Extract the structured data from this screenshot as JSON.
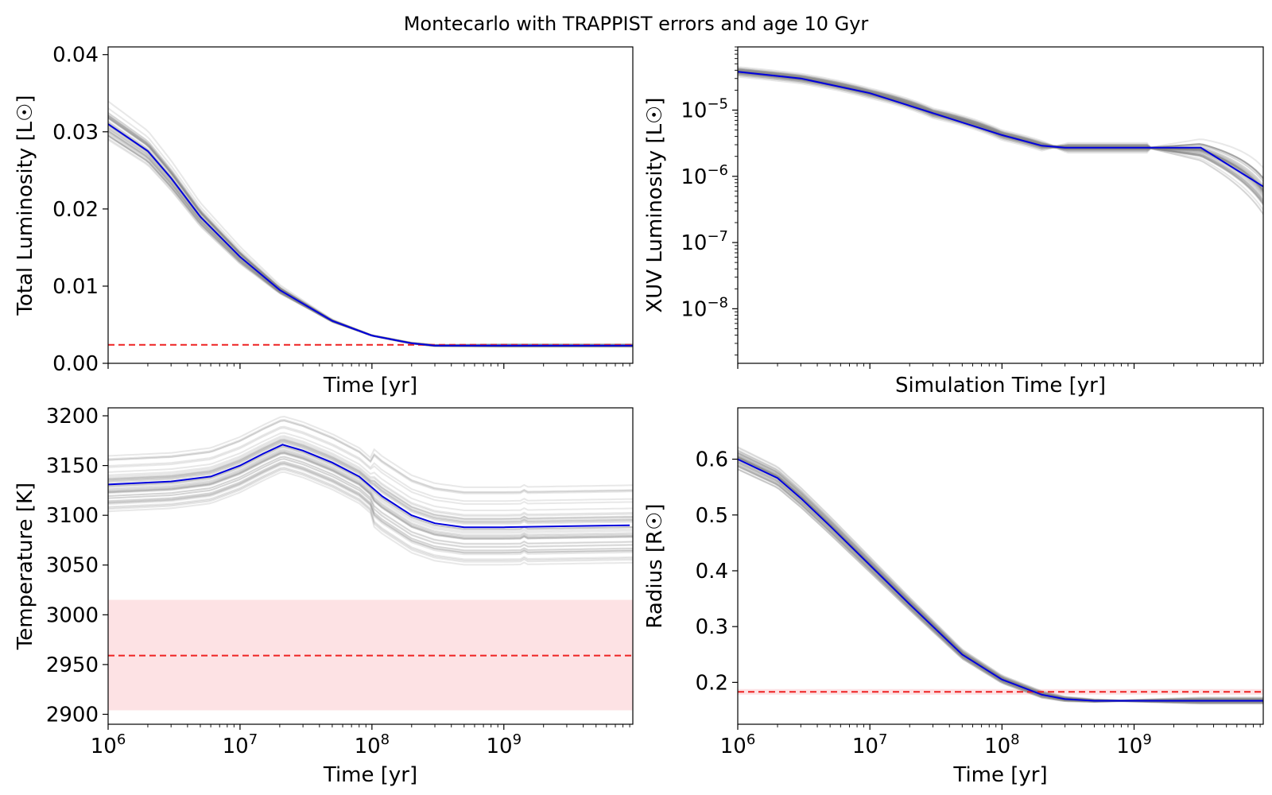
{
  "title": "Montecarlo with TRAPPIST errors and age 10 Gyr",
  "colors": {
    "model": "#0000dd",
    "samples": "#808080",
    "reference": "#ee2222",
    "band": "#fde2e4"
  },
  "chart_data": [
    {
      "type": "line",
      "id": "total-luminosity",
      "xlabel": "Time [yr]",
      "ylabel": "Total Luminosity [L☉]",
      "xscale": "log",
      "yscale": "linear",
      "xlim": [
        1000000,
        9500000000
      ],
      "ylim": [
        0.0,
        0.041
      ],
      "xticks": [],
      "yticks": [
        {
          "value": 0.0,
          "label": "0.00"
        },
        {
          "value": 0.01,
          "label": "0.01"
        },
        {
          "value": 0.02,
          "label": "0.02"
        },
        {
          "value": 0.03,
          "label": "0.03"
        },
        {
          "value": 0.04,
          "label": "0.04"
        }
      ],
      "reference_line": 0.0024,
      "model": {
        "x": [
          1000000,
          2000000,
          3000000,
          5000000,
          10000000,
          20000000,
          50000000,
          100000000,
          200000000,
          300000000,
          500000000,
          1000000000,
          9500000000
        ],
        "y": [
          0.031,
          0.0275,
          0.024,
          0.019,
          0.0138,
          0.0095,
          0.0055,
          0.0036,
          0.0026,
          0.0023,
          0.0023,
          0.0023,
          0.0023
        ]
      },
      "samples": {
        "count": 42,
        "spread": 0.1,
        "converge": [
          7.0,
          9.0
        ],
        "spike_every": 0
      }
    },
    {
      "type": "line",
      "id": "xuv-luminosity",
      "xlabel": "Simulation Time [yr]",
      "ylabel": "XUV Luminosity [L☉]",
      "xscale": "log",
      "yscale": "log",
      "xlim": [
        1000000,
        9500000000
      ],
      "ylim": [
        1.5e-09,
        9e-05
      ],
      "xticks": [],
      "yticks": [
        {
          "value": 1e-08,
          "label": "10",
          "exp": "−8"
        },
        {
          "value": 1e-07,
          "label": "10",
          "exp": "−7"
        },
        {
          "value": 1e-06,
          "label": "10",
          "exp": "−6"
        },
        {
          "value": 1e-05,
          "label": "10",
          "exp": "−5"
        }
      ],
      "model": {
        "x": [
          1000000,
          3000000,
          10000000,
          30000000,
          100000000,
          200000000,
          300000000,
          1000000000,
          3200000000,
          9500000000
        ],
        "y": [
          3.8e-05,
          3e-05,
          1.8e-05,
          9e-06,
          4.2e-06,
          2.9e-06,
          2.7e-06,
          2.7e-06,
          2.7e-06,
          7e-07
        ]
      },
      "samples": {
        "count": 48,
        "spread": 0.05,
        "converge": [
          8.3,
          8.5
        ],
        "spike_every": 0
      }
    },
    {
      "type": "line",
      "id": "temperature",
      "xlabel": "Time [yr]",
      "ylabel": "Temperature [K]",
      "xscale": "log",
      "yscale": "linear",
      "xlim": [
        1000000,
        9500000000
      ],
      "ylim": [
        2890,
        3208
      ],
      "xticks": [
        {
          "value": 1000000,
          "label": "10",
          "exp": "6"
        },
        {
          "value": 10000000,
          "label": "10",
          "exp": "7"
        },
        {
          "value": 100000000,
          "label": "10",
          "exp": "8"
        },
        {
          "value": 1000000000,
          "label": "10",
          "exp": "9"
        }
      ],
      "yticks": [
        {
          "value": 2900,
          "label": "2900"
        },
        {
          "value": 2950,
          "label": "2950"
        },
        {
          "value": 3000,
          "label": "3000"
        },
        {
          "value": 3050,
          "label": "3050"
        },
        {
          "value": 3100,
          "label": "3100"
        },
        {
          "value": 3150,
          "label": "3150"
        },
        {
          "value": 3200,
          "label": "3200"
        }
      ],
      "reference_line": 2959,
      "reference_band": [
        2904,
        3015
      ],
      "model": {
        "x": [
          1000000,
          3000000,
          6000000,
          10000000,
          15000000,
          21000000,
          30000000,
          50000000,
          80000000,
          120000000,
          200000000,
          300000000,
          500000000,
          1000000000,
          3000000000,
          9000000000
        ],
        "y": [
          3131,
          3134,
          3139,
          3150,
          3162,
          3171,
          3165,
          3153,
          3139,
          3119,
          3100,
          3092,
          3088,
          3088,
          3089,
          3090
        ]
      },
      "samples": {
        "count": 44,
        "spread": 0.55,
        "converge": [
          0,
          0
        ],
        "spike_every": 6
      }
    },
    {
      "type": "line",
      "id": "radius",
      "xlabel": "Time [yr]",
      "ylabel": "Radius [R☉]",
      "xscale": "log",
      "yscale": "linear",
      "xlim": [
        1000000,
        9500000000
      ],
      "ylim": [
        0.125,
        0.692
      ],
      "xticks": [
        {
          "value": 1000000,
          "label": "10",
          "exp": "6"
        },
        {
          "value": 10000000,
          "label": "10",
          "exp": "7"
        },
        {
          "value": 100000000,
          "label": "10",
          "exp": "8"
        },
        {
          "value": 1000000000,
          "label": "10",
          "exp": "9"
        }
      ],
      "yticks": [
        {
          "value": 0.2,
          "label": "0.2"
        },
        {
          "value": 0.3,
          "label": "0.3"
        },
        {
          "value": 0.4,
          "label": "0.4"
        },
        {
          "value": 0.5,
          "label": "0.5"
        },
        {
          "value": 0.6,
          "label": "0.6"
        }
      ],
      "reference_line": 0.183,
      "reference_band": [
        0.178,
        0.188
      ],
      "model": {
        "x": [
          1000000,
          2000000,
          3000000,
          5000000,
          10000000,
          20000000,
          50000000,
          100000000,
          200000000,
          300000000,
          500000000,
          1000000000,
          9500000000
        ],
        "y": [
          0.6,
          0.566,
          0.53,
          0.48,
          0.41,
          0.34,
          0.25,
          0.205,
          0.178,
          0.17,
          0.167,
          0.167,
          0.167
        ]
      },
      "samples": {
        "count": 44,
        "spread": 0.05,
        "converge": [
          8.3,
          9.5
        ],
        "spike_every": 0
      }
    }
  ]
}
